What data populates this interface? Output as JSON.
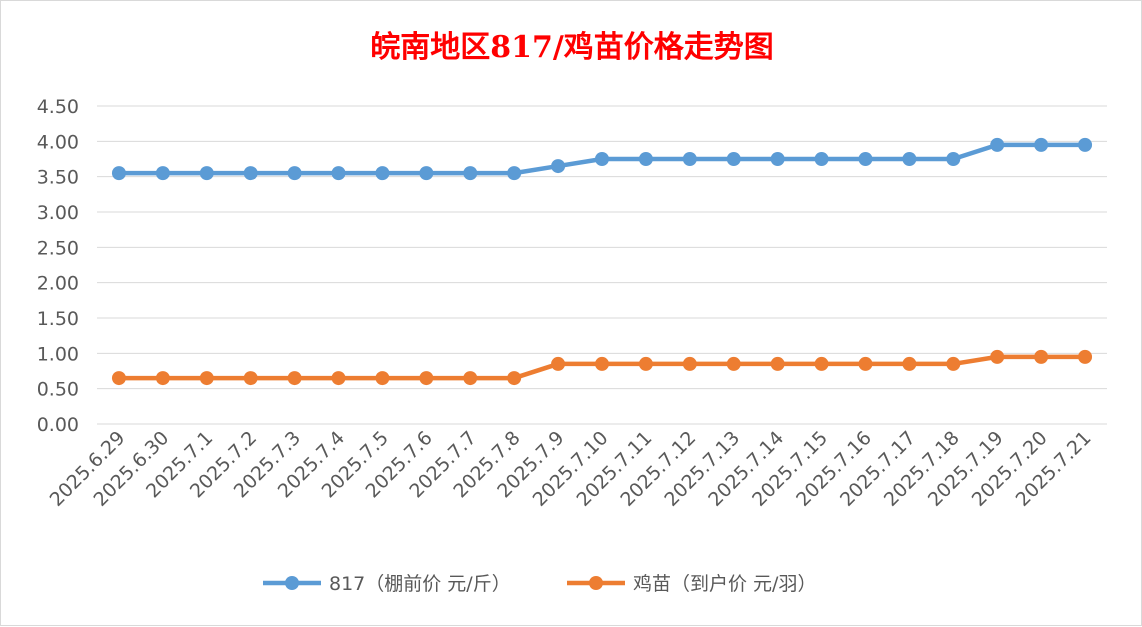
{
  "chart_data": {
    "type": "line",
    "title": "皖南地区817/鸡苗价格走势图",
    "xlabel": "",
    "ylabel": "",
    "ylim": [
      0,
      4.5
    ],
    "ytick_step": 0.5,
    "grid": true,
    "legend_position": "bottom",
    "categories": [
      "2025.6.29",
      "2025.6.30",
      "2025.7.1",
      "2025.7.2",
      "2025.7.3",
      "2025.7.4",
      "2025.7.5",
      "2025.7.6",
      "2025.7.7",
      "2025.7.8",
      "2025.7.9",
      "2025.7.10",
      "2025.7.11",
      "2025.7.12",
      "2025.7.13",
      "2025.7.14",
      "2025.7.15",
      "2025.7.16",
      "2025.7.17",
      "2025.7.18",
      "2025.7.19",
      "2025.7.20",
      "2025.7.21"
    ],
    "yticks": [
      "0.00",
      "0.50",
      "1.00",
      "1.50",
      "2.00",
      "2.50",
      "3.00",
      "3.50",
      "4.00",
      "4.50"
    ],
    "series": [
      {
        "name": "817（棚前价 元/斤）",
        "color": "#5b9bd5",
        "values": [
          3.55,
          3.55,
          3.55,
          3.55,
          3.55,
          3.55,
          3.55,
          3.55,
          3.55,
          3.55,
          3.65,
          3.75,
          3.75,
          3.75,
          3.75,
          3.75,
          3.75,
          3.75,
          3.75,
          3.75,
          3.95,
          3.95,
          3.95
        ]
      },
      {
        "name": "鸡苗（到户价 元/羽）",
        "color": "#ed7d31",
        "values": [
          0.65,
          0.65,
          0.65,
          0.65,
          0.65,
          0.65,
          0.65,
          0.65,
          0.65,
          0.65,
          0.85,
          0.85,
          0.85,
          0.85,
          0.85,
          0.85,
          0.85,
          0.85,
          0.85,
          0.85,
          0.95,
          0.95,
          0.95
        ]
      }
    ],
    "colors": {
      "title": "#ff0000",
      "grid": "#d9d9d9",
      "tick_text": "#595959"
    }
  }
}
